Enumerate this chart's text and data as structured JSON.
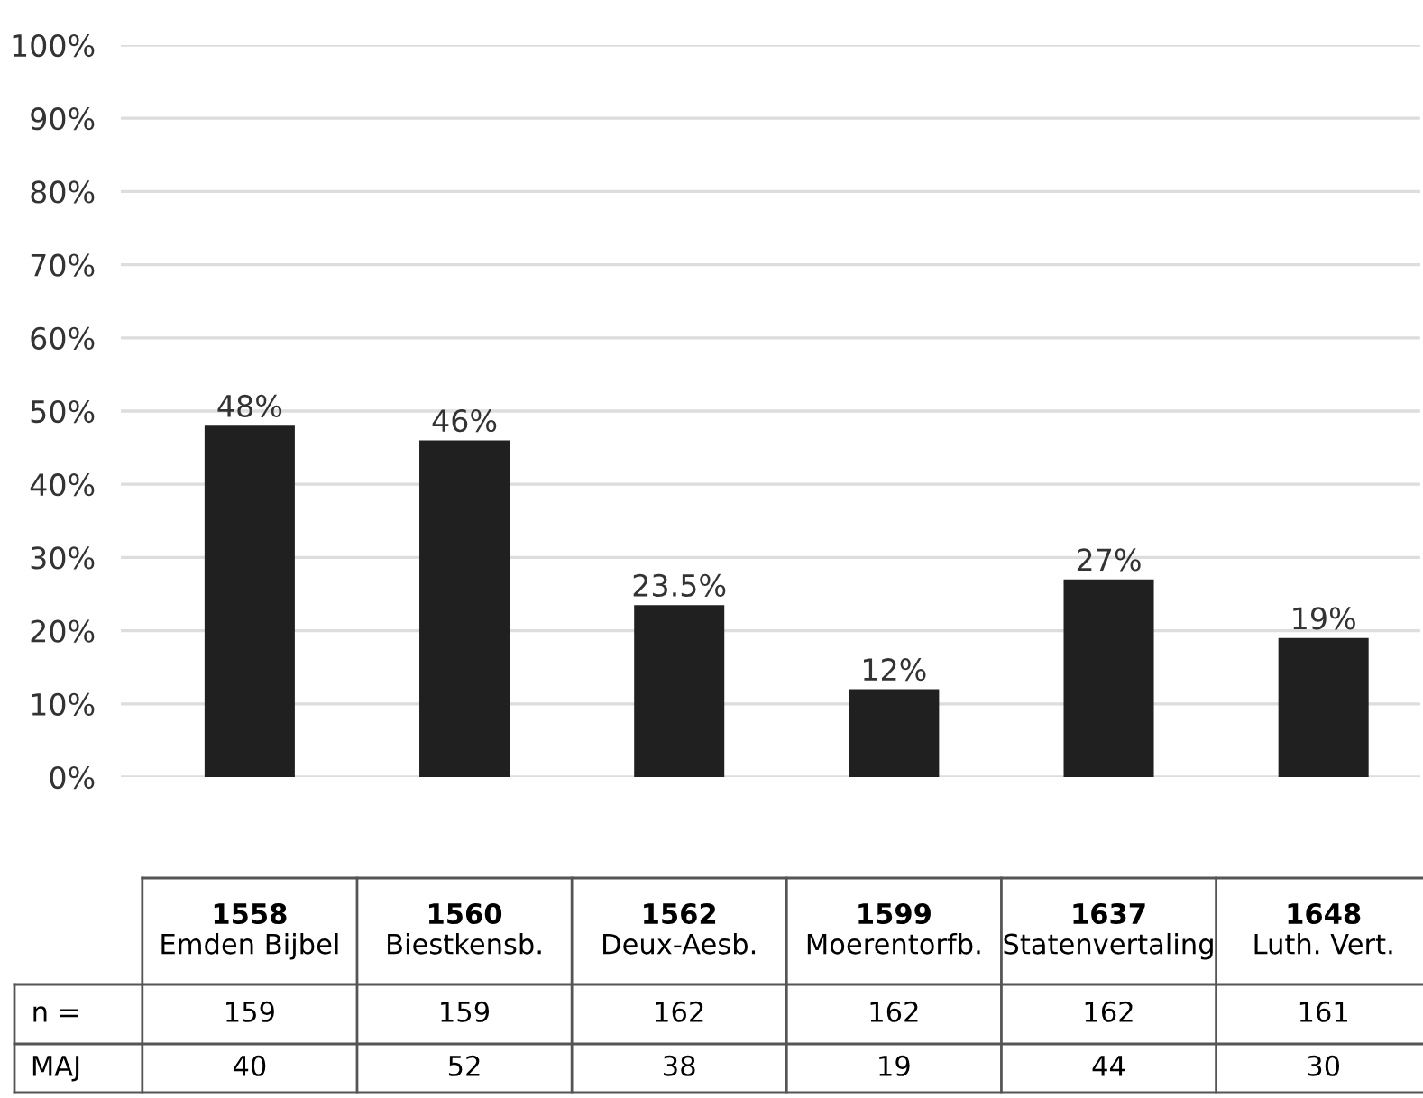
{
  "chart_data": {
    "type": "bar",
    "categories": [
      "1558\nEmden Bijbel",
      "1560\nBiestkensb.",
      "1562\nDeux-Aesb.",
      "1599\nMoerentorfb.",
      "1637\nStatenvertaling",
      "1648\nLuth. Vert."
    ],
    "values": [
      48,
      46,
      23.5,
      12,
      27,
      19
    ],
    "value_labels": [
      "48%",
      "46%",
      "23.5%",
      "12%",
      "27%",
      "19%"
    ],
    "color": "#202020",
    "ylim": [
      0,
      100
    ],
    "yticks": [
      {
        "value": 0,
        "label": "0%"
      },
      {
        "value": 10,
        "label": "10%"
      },
      {
        "value": 20,
        "label": "20%"
      },
      {
        "value": 30,
        "label": "30%"
      },
      {
        "value": 40,
        "label": "40%"
      },
      {
        "value": 50,
        "label": "50%"
      },
      {
        "value": 60,
        "label": "60%"
      },
      {
        "value": 70,
        "label": "70%"
      },
      {
        "value": 80,
        "label": "80%"
      },
      {
        "value": 90,
        "label": "90%"
      },
      {
        "value": 100,
        "label": "100%"
      }
    ],
    "grid": "y",
    "annotations": [
      "n =",
      "159",
      "159",
      "162",
      "162",
      "162",
      "161",
      "MAJ",
      "40",
      "52",
      "38",
      "19",
      "44",
      "30"
    ]
  }
}
